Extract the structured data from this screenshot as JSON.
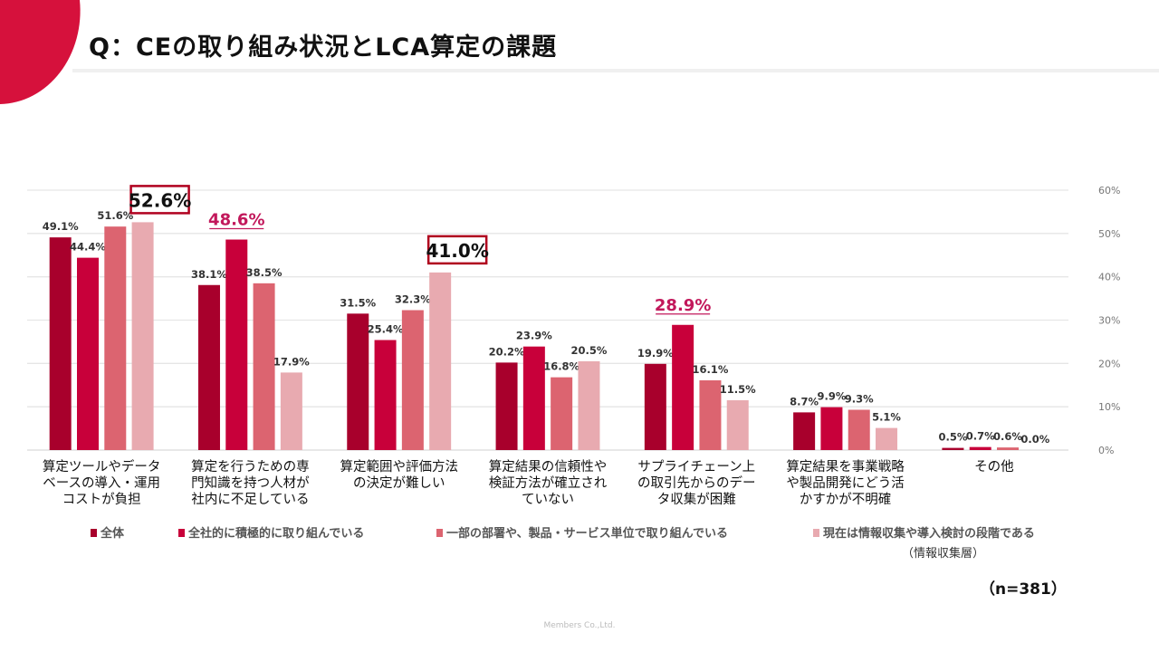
{
  "title": "Q：CEの取り組み状況とLCA算定の課題",
  "chart_data": {
    "type": "bar",
    "ylim": [
      0,
      60
    ],
    "yticks": [
      "0%",
      "10%",
      "20%",
      "30%",
      "40%",
      "50%",
      "60%"
    ],
    "grid": true,
    "legend_placement": "bottom",
    "categories": [
      [
        "算定ツールやデータ",
        "ベースの導入・運用",
        "コストが負担"
      ],
      [
        "算定を行うための専",
        "門知識を持つ人材が",
        "社内に不足している"
      ],
      [
        "算定範囲や評価方法",
        "の決定が難しい"
      ],
      [
        "算定結果の信頼性や",
        "検証方法が確立され",
        "ていない"
      ],
      [
        "サプライチェーン上",
        "の取引先からのデー",
        "タ収集が困難"
      ],
      [
        "算定結果を事業戦略",
        "や製品開発にどう活",
        "かすかが不明確"
      ],
      [
        "その他"
      ]
    ],
    "series": [
      {
        "name": "全体",
        "color": "#a8002c",
        "values": [
          49.1,
          38.1,
          31.5,
          20.2,
          19.9,
          8.7,
          0.5
        ]
      },
      {
        "name": "全社的に積極的に取り組んでいる",
        "color": "#c8003a",
        "values": [
          44.4,
          48.6,
          25.4,
          23.9,
          28.9,
          9.9,
          0.7
        ]
      },
      {
        "name": "一部の部署や、製品・サービス単位で取り組んでいる",
        "color": "#dc6470",
        "values": [
          51.6,
          38.5,
          32.3,
          16.8,
          16.1,
          9.3,
          0.6
        ]
      },
      {
        "name": "現在は情報収集や導入検討の段階である",
        "color": "#e8aab0",
        "values": [
          52.6,
          17.9,
          41.0,
          20.5,
          11.5,
          5.1,
          0.0
        ]
      }
    ],
    "highlights": [
      {
        "category": 0,
        "series": 3,
        "style": "boxed"
      },
      {
        "category": 1,
        "series": 1,
        "style": "underlined"
      },
      {
        "category": 2,
        "series": 3,
        "style": "boxed"
      },
      {
        "category": 4,
        "series": 1,
        "style": "underlined"
      }
    ]
  },
  "legend_note": "（情報収集層）",
  "sample_size": "（n=381）",
  "footer": "Members Co.,Ltd."
}
